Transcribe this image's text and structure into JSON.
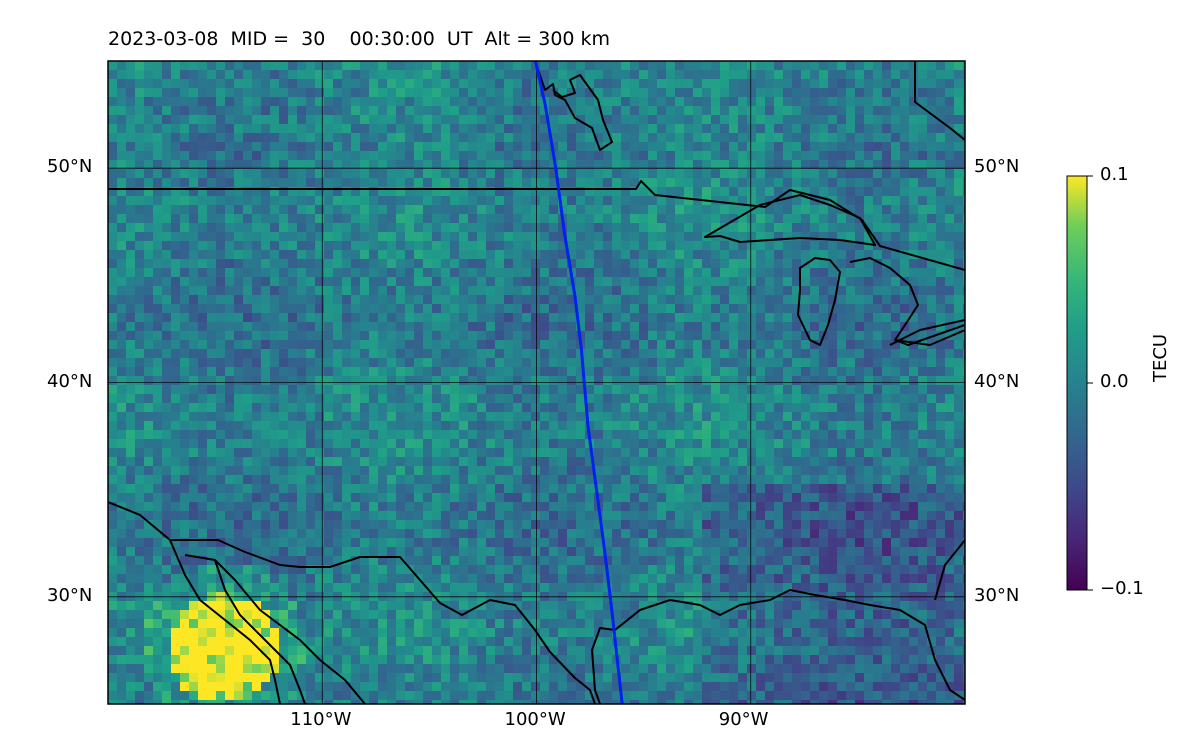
{
  "title": "2023-03-08  MID =  30    00:30:00  UT  Alt = 300 km",
  "map": {
    "lon_range": [
      -120,
      -80
    ],
    "lat_range": [
      25,
      55
    ],
    "lat_ticks": [
      {
        "value": 50,
        "label": "50°N"
      },
      {
        "value": 40,
        "label": "40°N"
      },
      {
        "value": 30,
        "label": "30°N"
      }
    ],
    "lon_ticks": [
      {
        "value": -110,
        "label": "110°W"
      },
      {
        "value": -100,
        "label": "100°W"
      },
      {
        "value": -90,
        "label": "90°W"
      }
    ],
    "track_color": "#0022ee",
    "track": [
      {
        "lon": -100.05,
        "lat": 55.0
      },
      {
        "lon": -99.6,
        "lat": 53.0
      },
      {
        "lon": -99.1,
        "lat": 50.0
      },
      {
        "lon": -98.7,
        "lat": 47.0
      },
      {
        "lon": -98.2,
        "lat": 44.0
      },
      {
        "lon": -97.9,
        "lat": 41.5
      },
      {
        "lon": -97.6,
        "lat": 38.0
      },
      {
        "lon": -97.2,
        "lat": 35.0
      },
      {
        "lon": -96.8,
        "lat": 32.0
      },
      {
        "lon": -96.5,
        "lat": 29.5
      },
      {
        "lon": -96.0,
        "lat": 25.0
      }
    ]
  },
  "colorbar": {
    "label": "TECU",
    "min": -0.1,
    "max": 0.1,
    "ticks": [
      {
        "value": 0.1,
        "label": "0.1"
      },
      {
        "value": 0.0,
        "label": "0.0"
      },
      {
        "value": -0.1,
        "label": "−0.1"
      }
    ],
    "colormap": "viridis"
  }
}
